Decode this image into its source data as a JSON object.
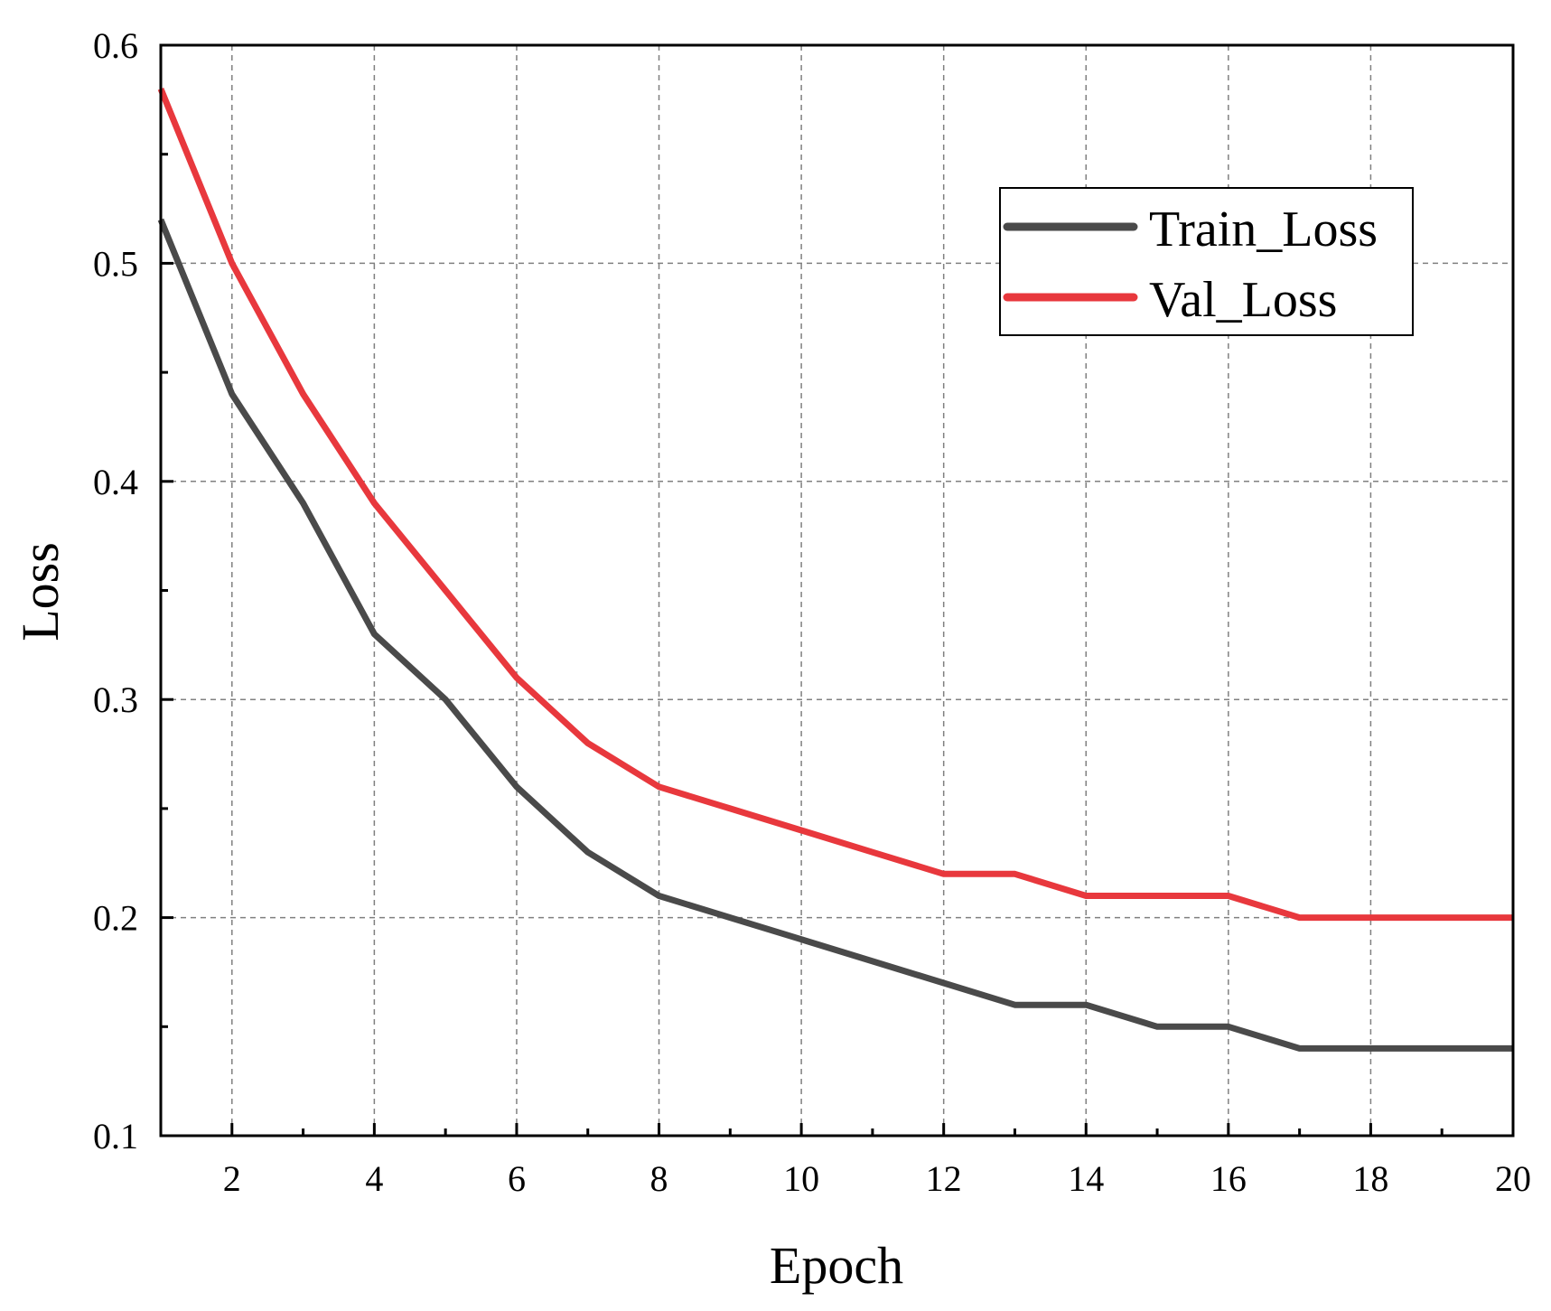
{
  "chart_data": {
    "type": "line",
    "title": "",
    "xlabel": "Epoch",
    "ylabel": "Loss",
    "xlim": [
      1,
      20
    ],
    "ylim": [
      0.1,
      0.6
    ],
    "x_ticks": [
      2,
      4,
      6,
      8,
      10,
      12,
      14,
      16,
      18,
      20
    ],
    "y_ticks": [
      0.1,
      0.2,
      0.3,
      0.4,
      0.5,
      0.6
    ],
    "y_tick_labels": [
      "0.1",
      "0.2",
      "0.3",
      "0.4",
      "0.5",
      "0.6"
    ],
    "x_minor_step": 1,
    "y_minor_step": 0.05,
    "grid": true,
    "legend_position": "top-right",
    "x": [
      1,
      2,
      3,
      4,
      5,
      6,
      7,
      8,
      9,
      10,
      11,
      12,
      13,
      14,
      15,
      16,
      17,
      18,
      19,
      20
    ],
    "series": [
      {
        "name": "Train_Loss",
        "color": "#4a4a4a",
        "values": [
          0.52,
          0.44,
          0.39,
          0.33,
          0.3,
          0.26,
          0.23,
          0.21,
          0.2,
          0.19,
          0.18,
          0.17,
          0.16,
          0.16,
          0.15,
          0.15,
          0.14,
          0.14,
          0.14,
          0.14
        ]
      },
      {
        "name": "Val_Loss",
        "color": "#e8383d",
        "values": [
          0.58,
          0.5,
          0.44,
          0.39,
          0.35,
          0.31,
          0.28,
          0.26,
          0.25,
          0.24,
          0.23,
          0.22,
          0.22,
          0.21,
          0.21,
          0.21,
          0.2,
          0.2,
          0.2,
          0.2
        ]
      }
    ]
  }
}
